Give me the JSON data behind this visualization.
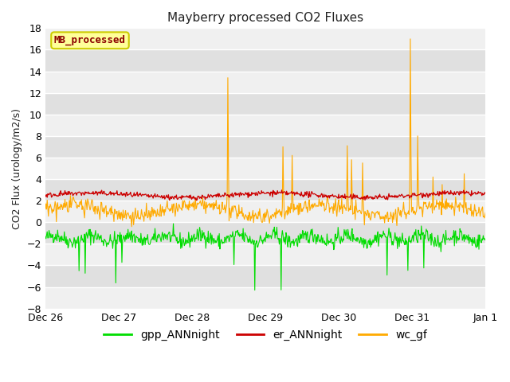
{
  "title": "Mayberry processed CO2 Fluxes",
  "ylabel": "CO2 Flux (urology/m2/s)",
  "ylim": [
    -8,
    18
  ],
  "yticks": [
    -8,
    -6,
    -4,
    -2,
    0,
    2,
    4,
    6,
    8,
    10,
    12,
    14,
    16,
    18
  ],
  "outer_bg": "#ffffff",
  "plot_bg_color": "#e8e8e8",
  "band_color_light": "#f0f0f0",
  "band_color_dark": "#e0e0e0",
  "grid_color": "#ffffff",
  "label_box_text": "MB_processed",
  "label_box_facecolor": "#ffff99",
  "label_box_edgecolor": "#cccc00",
  "label_box_textcolor": "#8b0000",
  "gpp_color": "#00dd00",
  "er_color": "#cc0000",
  "wc_color": "#ffaa00",
  "legend_labels": [
    "gpp_ANNnight",
    "er_ANNnight",
    "wc_gf"
  ],
  "tick_labels": [
    "Dec 26",
    "Dec 27",
    "Dec 28",
    "Dec 29",
    "Dec 30",
    "Dec 31",
    "Jan 1"
  ],
  "n_points": 720,
  "seed": 42
}
